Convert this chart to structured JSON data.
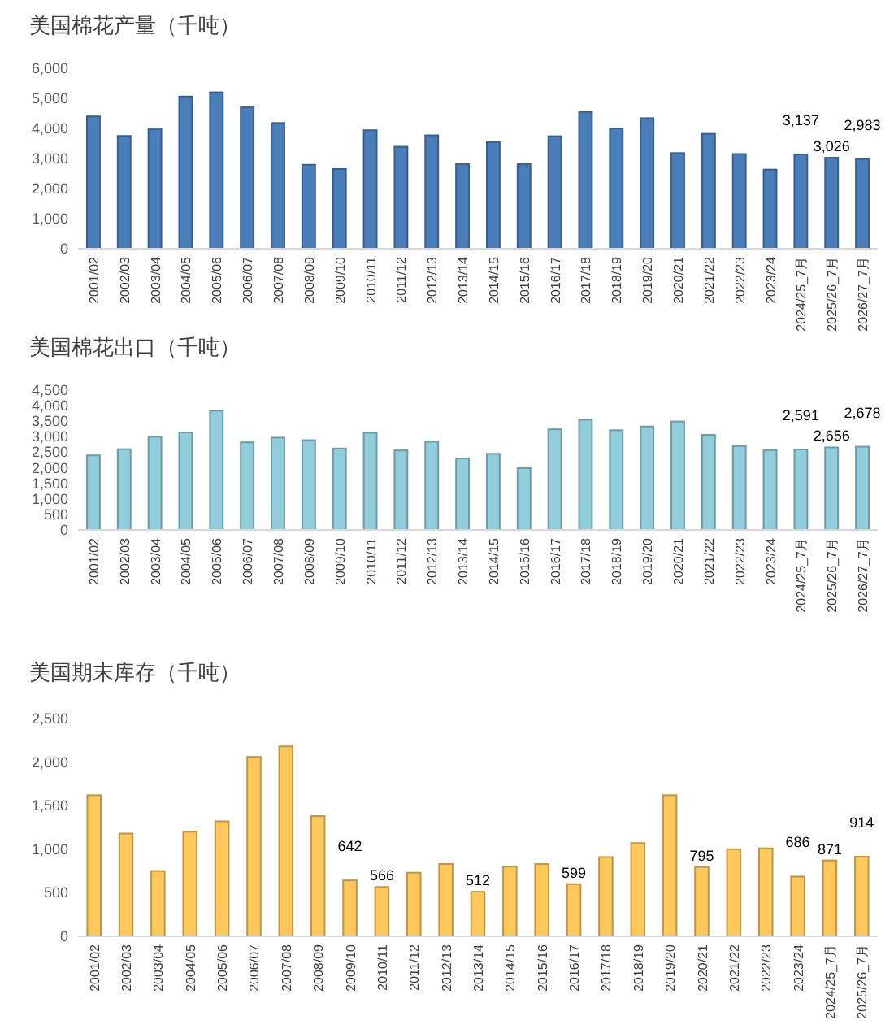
{
  "chart_data": [
    {
      "type": "bar",
      "title": "美国棉花产量（千吨）",
      "categories": [
        "2001/02",
        "2002/03",
        "2003/04",
        "2004/05",
        "2005/06",
        "2006/07",
        "2007/08",
        "2008/09",
        "2009/10",
        "2010/11",
        "2011/12",
        "2012/13",
        "2013/14",
        "2014/15",
        "2015/16",
        "2016/17",
        "2017/18",
        "2018/19",
        "2019/20",
        "2020/21",
        "2021/22",
        "2022/23",
        "2023/24",
        "2024/25_7月",
        "2025/26_7月",
        "2026/27_7月"
      ],
      "values": [
        4400,
        3750,
        3970,
        5060,
        5200,
        4700,
        4180,
        2790,
        2650,
        3940,
        3390,
        3770,
        2810,
        3550,
        2810,
        3740,
        4550,
        4000,
        4340,
        3180,
        3820,
        3150,
        2630,
        3137,
        3026,
        2983
      ],
      "value_labels": [
        null,
        null,
        null,
        null,
        null,
        null,
        null,
        null,
        null,
        null,
        null,
        null,
        null,
        null,
        null,
        null,
        null,
        null,
        null,
        null,
        null,
        null,
        null,
        "3,137",
        "3,026",
        "2,983"
      ],
      "color": "#4a7ebb",
      "ylim": [
        0,
        6000
      ],
      "yticks": [
        {
          "value": 0,
          "label": "0"
        },
        {
          "value": 1000,
          "label": "1,000"
        },
        {
          "value": 2000,
          "label": "2,000"
        },
        {
          "value": 3000,
          "label": "3,000"
        },
        {
          "value": 4000,
          "label": "4,000"
        },
        {
          "value": 5000,
          "label": "5,000"
        },
        {
          "value": 6000,
          "label": "6,000"
        }
      ]
    },
    {
      "type": "bar",
      "title": "美国棉花出口（千吨）",
      "categories": [
        "2001/02",
        "2002/03",
        "2003/04",
        "2004/05",
        "2005/06",
        "2006/07",
        "2007/08",
        "2008/09",
        "2009/10",
        "2010/11",
        "2011/12",
        "2012/13",
        "2013/14",
        "2014/15",
        "2015/16",
        "2016/17",
        "2017/18",
        "2018/19",
        "2019/20",
        "2020/21",
        "2021/22",
        "2022/23",
        "2023/24",
        "2024/25_7月",
        "2025/26_7月",
        "2026/27_7月"
      ],
      "values": [
        2400,
        2600,
        3000,
        3140,
        3840,
        2820,
        2970,
        2890,
        2620,
        3130,
        2560,
        2840,
        2300,
        2450,
        1990,
        3240,
        3550,
        3210,
        3330,
        3490,
        3060,
        2700,
        2570,
        2591,
        2656,
        2678
      ],
      "value_labels": [
        null,
        null,
        null,
        null,
        null,
        null,
        null,
        null,
        null,
        null,
        null,
        null,
        null,
        null,
        null,
        null,
        null,
        null,
        null,
        null,
        null,
        null,
        null,
        "2,591",
        "2,656",
        "2,678"
      ],
      "color": "#92cddc",
      "ylim": [
        0,
        4500
      ],
      "yticks": [
        {
          "value": 0,
          "label": "0"
        },
        {
          "value": 500,
          "label": "500"
        },
        {
          "value": 1000,
          "label": "1,000"
        },
        {
          "value": 1500,
          "label": "1,500"
        },
        {
          "value": 2000,
          "label": "2,000"
        },
        {
          "value": 2500,
          "label": "2,500"
        },
        {
          "value": 3000,
          "label": "3,000"
        },
        {
          "value": 3500,
          "label": "3,500"
        },
        {
          "value": 4000,
          "label": "4,000"
        },
        {
          "value": 4500,
          "label": "4,500"
        }
      ]
    },
    {
      "type": "bar",
      "title": "美国期末库存（千吨）",
      "categories": [
        "2001/02",
        "2002/03",
        "2003/04",
        "2004/05",
        "2005/06",
        "2006/07",
        "2007/08",
        "2008/09",
        "2009/10",
        "2010/11",
        "2011/12",
        "2012/13",
        "2013/14",
        "2014/15",
        "2015/16",
        "2016/17",
        "2017/18",
        "2018/19",
        "2019/20",
        "2020/21",
        "2021/22",
        "2022/23",
        "2023/24",
        "2024/25_7月",
        "2025/26_7月"
      ],
      "values": [
        1620,
        1180,
        750,
        1200,
        1320,
        2060,
        2180,
        1380,
        642,
        566,
        730,
        830,
        512,
        800,
        830,
        599,
        910,
        1070,
        1620,
        795,
        1000,
        1010,
        686,
        871,
        914
      ],
      "value_labels": [
        null,
        null,
        null,
        null,
        null,
        null,
        null,
        null,
        "642",
        "566",
        null,
        null,
        "512",
        null,
        null,
        "599",
        null,
        null,
        null,
        "795",
        null,
        null,
        "686",
        "871",
        "914"
      ],
      "color": "#ffc85a",
      "ylim": [
        0,
        2500
      ],
      "yticks": [
        {
          "value": 0,
          "label": "0"
        },
        {
          "value": 500,
          "label": "500"
        },
        {
          "value": 1000,
          "label": "1,000"
        },
        {
          "value": 1500,
          "label": "1,500"
        },
        {
          "value": 2000,
          "label": "2,000"
        },
        {
          "value": 2500,
          "label": "2,500"
        }
      ]
    }
  ]
}
